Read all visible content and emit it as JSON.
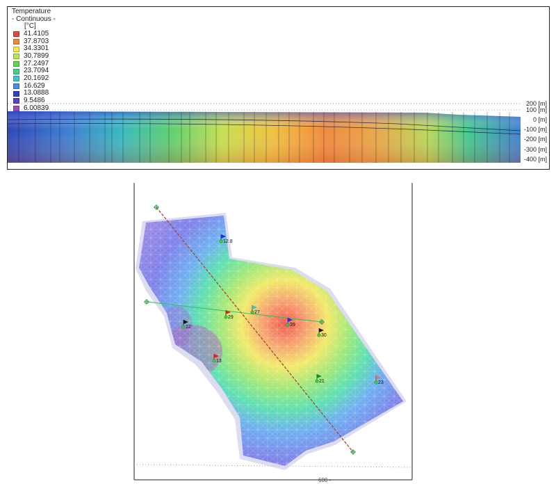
{
  "legend": {
    "title": "Temperature",
    "subtitle": "- Continuous -",
    "unit": "[°C]",
    "entries": [
      {
        "label": "41.4105",
        "color": "#e8463a"
      },
      {
        "label": "37.8703",
        "color": "#f0883c"
      },
      {
        "label": "34.3301",
        "color": "#f2e94a"
      },
      {
        "label": "30.7899",
        "color": "#b5e84a"
      },
      {
        "label": "27.2497",
        "color": "#5fd84a"
      },
      {
        "label": "23.7094",
        "color": "#3ed58a"
      },
      {
        "label": "20.1692",
        "color": "#38c6cf"
      },
      {
        "label": "16.629",
        "color": "#3f8fe0"
      },
      {
        "label": "13.0888",
        "color": "#2f3fd0"
      },
      {
        "label": "9.5486",
        "color": "#5a3fc9"
      },
      {
        "label": "6.00839",
        "color": "#a34bb4"
      }
    ]
  },
  "section": {
    "depth_labels": [
      "200 [m]",
      "100 [m]",
      "0 [m]",
      "-100 [m]",
      "-200 [m]",
      "-300 [m]",
      "-400 [m]"
    ]
  },
  "map": {
    "wells": [
      {
        "label": "12.8",
        "flag_color": "#2a2ad8"
      },
      {
        "label": "29",
        "flag_color": "#e02020"
      },
      {
        "label": "27",
        "flag_color": "#30c8c8"
      },
      {
        "label": "39",
        "flag_color": "#2a2ad8"
      },
      {
        "label": "30",
        "flag_color": "#111111"
      },
      {
        "label": "12",
        "flag_color": "#111111"
      },
      {
        "label": "13",
        "flag_color": "#e02020"
      },
      {
        "label": "21",
        "flag_color": "#1a8a2a"
      },
      {
        "label": "23",
        "flag_color": "#e87070"
      }
    ],
    "axis_label": "600 -"
  }
}
